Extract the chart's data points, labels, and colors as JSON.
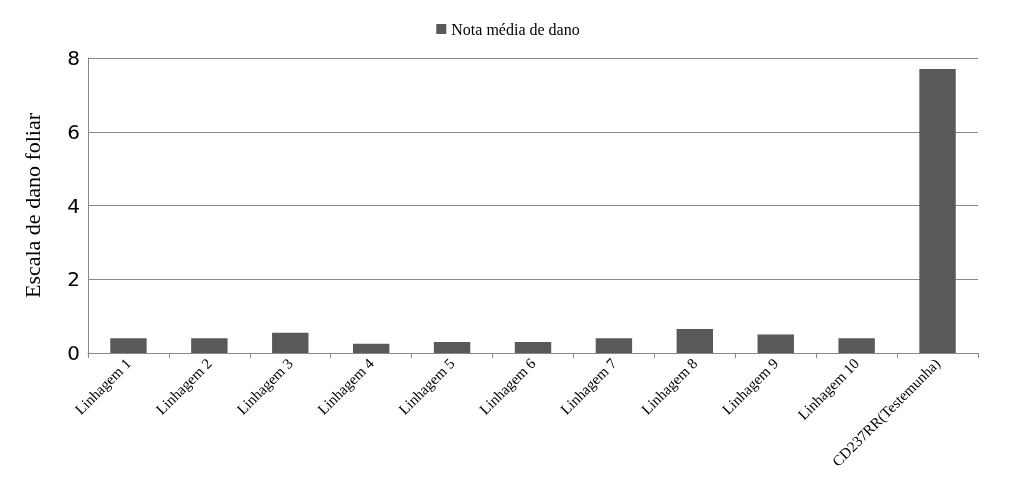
{
  "chart_data": {
    "type": "bar",
    "ylabel": "Escala de dano foliar",
    "categories": [
      "Linhagem 1",
      "Linhagem 2",
      "Linhagem 3",
      "Linhagem 4",
      "Linhagem 5",
      "Linhagem 6",
      "Linhagem 7",
      "Linhagem 8",
      "Linhagem 9",
      "Linhagem 10",
      "CD237RR(Testemunha)"
    ],
    "series": [
      {
        "name": "Nota média de dano",
        "color": "#595959",
        "values": [
          0.4,
          0.4,
          0.55,
          0.25,
          0.3,
          0.3,
          0.4,
          0.65,
          0.5,
          0.4,
          7.7
        ]
      }
    ],
    "ylim": [
      0,
      8
    ],
    "yticks": [
      0,
      2,
      4,
      6,
      8
    ],
    "grid": "y",
    "legend": "top"
  }
}
